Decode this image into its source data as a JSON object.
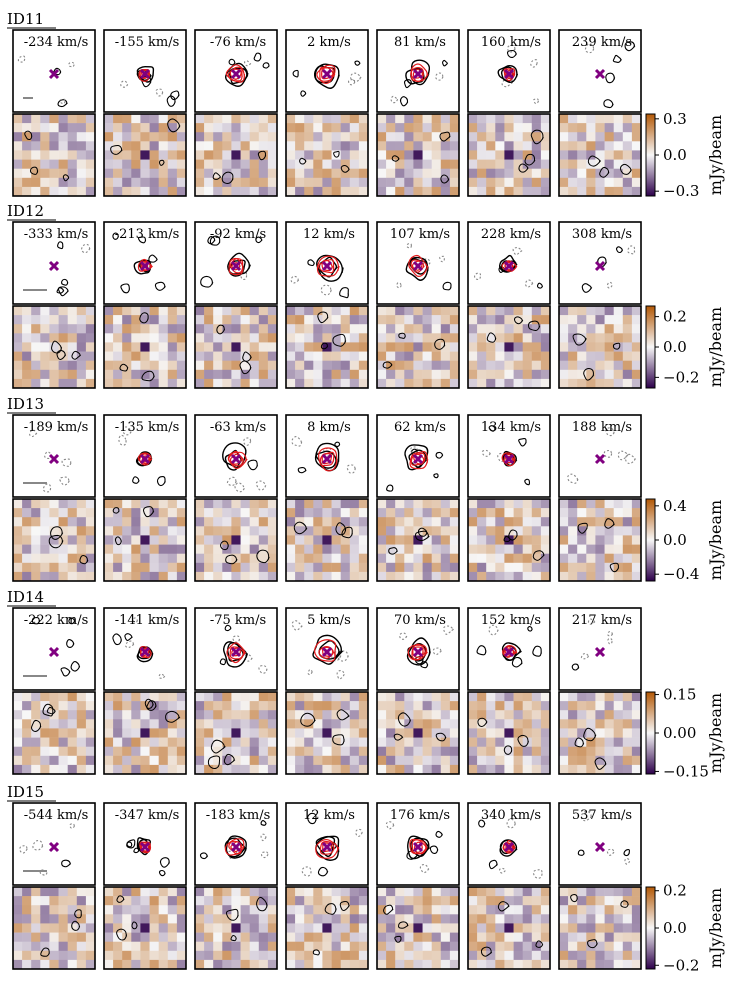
{
  "chart_data": {
    "type": "heatmap",
    "description_free": true,
    "colormap": {
      "low": "#2d004b",
      "mid": "#f7f7f7",
      "high": "#b35806"
    },
    "contour_colors": {
      "positive": "#000000",
      "negative": "#888888",
      "model": "#e31a1c"
    },
    "marker_color": "#800080",
    "colorbar_label": "mJy/beam",
    "sources": [
      {
        "id": "ID11",
        "channels": [
          "-234 km/s",
          "-155 km/s",
          "-76 km/s",
          "2 km/s",
          "81 km/s",
          "160 km/s",
          "239 km/s"
        ],
        "colorbar_ticks": [
          "0.3",
          "0.0",
          "−0.3"
        ],
        "colorbar_values": [
          0.3,
          0.0,
          -0.3
        ],
        "vlim": [
          -0.34,
          0.34
        ]
      },
      {
        "id": "ID12",
        "channels": [
          "-333 km/s",
          "-213 km/s",
          "-92 km/s",
          "12 km/s",
          "107 km/s",
          "228 km/s",
          "308 km/s"
        ],
        "colorbar_ticks": [
          "0.2",
          "0.0",
          "−0.2"
        ],
        "colorbar_values": [
          0.2,
          0.0,
          -0.2
        ],
        "vlim": [
          -0.27,
          0.27
        ]
      },
      {
        "id": "ID13",
        "channels": [
          "-189 km/s",
          "-135 km/s",
          "-63 km/s",
          "8 km/s",
          "62 km/s",
          "134 km/s",
          "188 km/s"
        ],
        "colorbar_ticks": [
          "0.4",
          "0.0",
          "−0.4"
        ],
        "colorbar_values": [
          0.4,
          0.0,
          -0.4
        ],
        "vlim": [
          -0.48,
          0.48
        ]
      },
      {
        "id": "ID14",
        "channels": [
          "-222 km/s",
          "-141 km/s",
          "-75 km/s",
          "5 km/s",
          "70 km/s",
          "152 km/s",
          "217 km/s"
        ],
        "colorbar_ticks": [
          "0.15",
          "0.00",
          "−0.15"
        ],
        "colorbar_values": [
          0.15,
          0.0,
          -0.15
        ],
        "vlim": [
          -0.16,
          0.16
        ]
      },
      {
        "id": "ID15",
        "channels": [
          "-544 km/s",
          "-347 km/s",
          "-183 km/s",
          "12 km/s",
          "176 km/s",
          "340 km/s",
          "537 km/s"
        ],
        "colorbar_ticks": [
          "0.2",
          "0.0",
          "−0.2"
        ],
        "colorbar_values": [
          0.2,
          0.0,
          -0.2
        ],
        "vlim": [
          -0.22,
          0.22
        ]
      }
    ]
  }
}
